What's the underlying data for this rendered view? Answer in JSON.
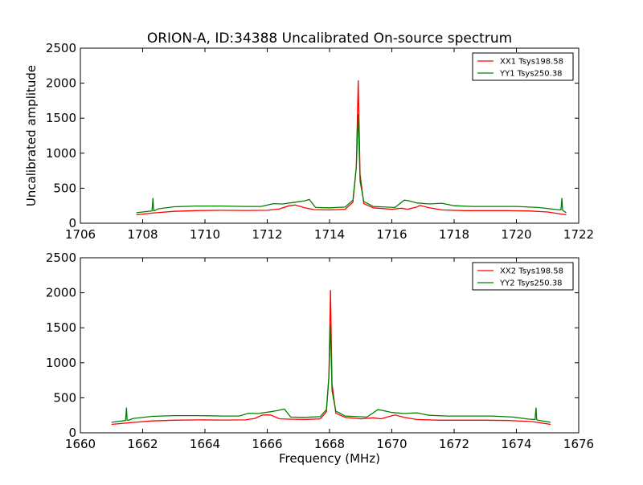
{
  "title": "ORION-A, ID:34388 Uncalibrated On-source spectrum",
  "ylabel": "Uncalibrated amplitude",
  "xlabel": "Frequency (MHz)",
  "chart_data": [
    {
      "type": "line",
      "title": "ORION-A, ID:34388 Uncalibrated On-source spectrum",
      "ylabel": "Uncalibrated amplitude",
      "xlabel": "",
      "xlim": [
        1706,
        1722
      ],
      "ylim": [
        0,
        2500
      ],
      "xticks": [
        "1706",
        "1708",
        "1710",
        "1712",
        "1714",
        "1716",
        "1718",
        "1720",
        "1722"
      ],
      "yticks": [
        "0",
        "500",
        "1000",
        "1500",
        "2000",
        "2500"
      ],
      "legend_position": "top-right",
      "grid": false,
      "series": [
        {
          "name": "XX1 Tsys198.58",
          "color": "#ff0000",
          "x": [
            1707.8,
            1708.3,
            1709.0,
            1709.7,
            1710.5,
            1711.3,
            1712.0,
            1712.4,
            1712.7,
            1712.9,
            1713.2,
            1713.5,
            1714.0,
            1714.5,
            1714.75,
            1714.86,
            1714.92,
            1714.98,
            1715.1,
            1715.4,
            1716.0,
            1716.3,
            1716.5,
            1716.8,
            1716.9,
            1717.2,
            1717.6,
            1718.3,
            1719.0,
            1719.7,
            1720.4,
            1721.0,
            1721.6
          ],
          "y": [
            120,
            145,
            170,
            180,
            185,
            182,
            185,
            205,
            250,
            260,
            220,
            195,
            190,
            200,
            300,
            800,
            2040,
            700,
            280,
            220,
            200,
            215,
            200,
            230,
            255,
            220,
            190,
            180,
            180,
            180,
            175,
            160,
            120
          ]
        },
        {
          "name": "YY1 Tsys250.38",
          "color": "#008000",
          "x": [
            1707.8,
            1708.3,
            1708.33,
            1708.35,
            1708.38,
            1708.5,
            1709.0,
            1709.7,
            1710.5,
            1711.3,
            1711.8,
            1712.2,
            1712.5,
            1712.9,
            1713.2,
            1713.35,
            1713.55,
            1714.0,
            1714.5,
            1714.75,
            1714.86,
            1714.92,
            1714.98,
            1715.1,
            1715.4,
            1716.1,
            1716.4,
            1716.55,
            1716.8,
            1717.2,
            1717.6,
            1718.0,
            1718.6,
            1719.3,
            1720.0,
            1720.7,
            1721.3,
            1721.43,
            1721.46,
            1721.48,
            1721.5,
            1721.6
          ],
          "y": [
            150,
            175,
            360,
            180,
            178,
            205,
            235,
            245,
            245,
            240,
            240,
            280,
            275,
            300,
            320,
            340,
            225,
            220,
            230,
            330,
            800,
            1560,
            600,
            310,
            240,
            225,
            330,
            320,
            290,
            275,
            285,
            250,
            240,
            240,
            240,
            225,
            195,
            190,
            360,
            190,
            180,
            150
          ]
        }
      ]
    },
    {
      "type": "line",
      "title": "",
      "ylabel": "",
      "xlabel": "Frequency (MHz)",
      "xlim": [
        1660,
        1676
      ],
      "ylim": [
        0,
        2500
      ],
      "xticks": [
        "1660",
        "1662",
        "1664",
        "1666",
        "1668",
        "1670",
        "1672",
        "1674",
        "1676"
      ],
      "yticks": [
        "0",
        "500",
        "1000",
        "1500",
        "2000",
        "2500"
      ],
      "legend_position": "top-right",
      "grid": false,
      "series": [
        {
          "name": "XX2 Tsys198.58",
          "color": "#ff0000",
          "x": [
            1661.0,
            1661.6,
            1662.3,
            1663.0,
            1663.8,
            1664.6,
            1665.3,
            1665.6,
            1665.85,
            1666.1,
            1666.4,
            1666.7,
            1667.2,
            1667.7,
            1667.9,
            1667.98,
            1668.03,
            1668.08,
            1668.2,
            1668.5,
            1669.0,
            1669.4,
            1669.65,
            1669.9,
            1670.1,
            1670.4,
            1670.8,
            1671.5,
            1672.3,
            1673.0,
            1673.8,
            1674.5,
            1675.1
          ],
          "y": [
            120,
            145,
            170,
            180,
            185,
            182,
            185,
            205,
            255,
            255,
            200,
            195,
            190,
            200,
            300,
            800,
            2040,
            700,
            280,
            220,
            200,
            215,
            200,
            230,
            255,
            220,
            190,
            180,
            180,
            180,
            175,
            160,
            120
          ]
        },
        {
          "name": "YY2 Tsys250.38",
          "color": "#008000",
          "x": [
            1661.0,
            1661.45,
            1661.48,
            1661.5,
            1661.53,
            1661.7,
            1662.3,
            1663.0,
            1663.8,
            1664.6,
            1665.1,
            1665.4,
            1665.7,
            1666.1,
            1666.35,
            1666.55,
            1666.75,
            1667.2,
            1667.7,
            1667.9,
            1667.98,
            1668.03,
            1668.08,
            1668.2,
            1668.5,
            1669.2,
            1669.55,
            1669.7,
            1670.0,
            1670.4,
            1670.8,
            1671.2,
            1671.8,
            1672.5,
            1673.2,
            1673.9,
            1674.4,
            1674.6,
            1674.63,
            1674.65,
            1674.68,
            1675.1
          ],
          "y": [
            150,
            175,
            360,
            180,
            178,
            205,
            235,
            245,
            245,
            240,
            240,
            280,
            275,
            300,
            320,
            340,
            225,
            220,
            230,
            330,
            800,
            1560,
            600,
            310,
            240,
            225,
            330,
            320,
            290,
            275,
            285,
            250,
            240,
            240,
            240,
            225,
            195,
            190,
            360,
            190,
            180,
            150
          ]
        }
      ]
    }
  ]
}
